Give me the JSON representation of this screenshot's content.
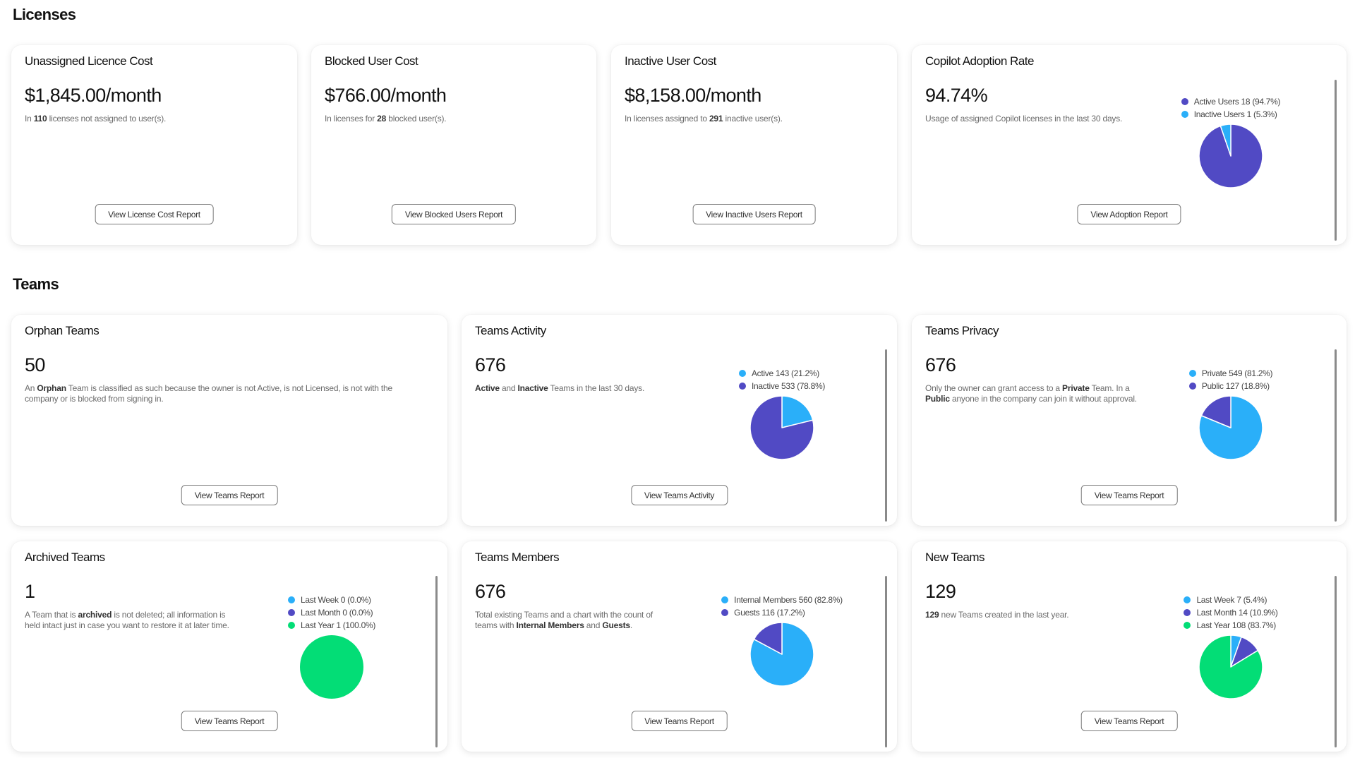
{
  "colors": {
    "blue": "#2AAFF9",
    "purple": "#514AC4",
    "green": "#03DD76"
  },
  "licenses": {
    "heading": "Licenses",
    "cards": [
      {
        "title": "Unassigned Licence Cost",
        "value": "$1,845.00/month",
        "desc": [
          {
            "t": "In "
          },
          {
            "t": "110",
            "b": true
          },
          {
            "t": " licenses not assigned to user(s)."
          }
        ],
        "button": "View License Cost Report"
      },
      {
        "title": "Blocked User Cost",
        "value": "$766.00/month",
        "desc": [
          {
            "t": "In licenses for "
          },
          {
            "t": "28",
            "b": true
          },
          {
            "t": " blocked user(s)."
          }
        ],
        "button": "View Blocked Users Report"
      },
      {
        "title": "Inactive User Cost",
        "value": "$8,158.00/month",
        "desc": [
          {
            "t": "In licenses assigned to "
          },
          {
            "t": "291",
            "b": true
          },
          {
            "t": " inactive user(s)."
          }
        ],
        "button": "View Inactive Users Report"
      },
      {
        "title": "Copilot Adoption Rate",
        "value": "94.74%",
        "desc": [
          {
            "t": "Usage of assigned Copilot licenses in the last 30 days."
          }
        ],
        "button": "View Adoption Report",
        "chart": {
          "type": "pie",
          "series": [
            {
              "legend": "Active Users 18 (94.7%)",
              "value": 18,
              "color": "purple"
            },
            {
              "legend": "Inactive Users 1 (5.3%)",
              "value": 1,
              "color": "blue"
            }
          ]
        }
      }
    ]
  },
  "teams": {
    "heading": "Teams",
    "cards": [
      {
        "title": "Orphan Teams",
        "value": "50",
        "desc": [
          {
            "t": "An "
          },
          {
            "t": "Orphan",
            "b": true
          },
          {
            "t": " Team is classified as such because the owner is not Active, is not Licensed, is not with the company or is blocked from signing in."
          }
        ],
        "button": "View Teams Report"
      },
      {
        "title": "Teams Activity",
        "value": "676",
        "desc": [
          {
            "t": "Active",
            "b": true
          },
          {
            "t": " and "
          },
          {
            "t": "Inactive",
            "b": true
          },
          {
            "t": " Teams in the last 30 days."
          }
        ],
        "button": "View Teams Activity",
        "chart": {
          "type": "pie",
          "series": [
            {
              "legend": "Active 143 (21.2%)",
              "value": 143,
              "color": "blue"
            },
            {
              "legend": "Inactive 533 (78.8%)",
              "value": 533,
              "color": "purple"
            }
          ]
        }
      },
      {
        "title": "Teams Privacy",
        "value": "676",
        "desc": [
          {
            "t": "Only the owner can grant access to a "
          },
          {
            "t": "Private",
            "b": true
          },
          {
            "t": " Team. In a "
          },
          {
            "t": "Public",
            "b": true
          },
          {
            "t": " anyone in the company can join it without approval."
          }
        ],
        "button": "View Teams Report",
        "chart": {
          "type": "pie",
          "series": [
            {
              "legend": "Private 549 (81.2%)",
              "value": 549,
              "color": "blue"
            },
            {
              "legend": "Public 127 (18.8%)",
              "value": 127,
              "color": "purple"
            }
          ]
        }
      },
      {
        "title": "Archived Teams",
        "value": "1",
        "desc": [
          {
            "t": "A Team that is "
          },
          {
            "t": "archived",
            "b": true
          },
          {
            "t": " is not deleted; all information is held intact just in case you want to restore it at later time."
          }
        ],
        "button": "View Teams Report",
        "chart": {
          "type": "pie",
          "series": [
            {
              "legend": "Last Week 0 (0.0%)",
              "value": 0,
              "color": "blue"
            },
            {
              "legend": "Last Month 0 (0.0%)",
              "value": 0,
              "color": "purple"
            },
            {
              "legend": "Last Year 1 (100.0%)",
              "value": 1,
              "color": "green"
            }
          ]
        }
      },
      {
        "title": "Teams Members",
        "value": "676",
        "desc": [
          {
            "t": "Total existing Teams and a chart with the count of teams with "
          },
          {
            "t": "Internal Members",
            "b": true
          },
          {
            "t": " and "
          },
          {
            "t": "Guests",
            "b": true
          },
          {
            "t": "."
          }
        ],
        "button": "View Teams Report",
        "chart": {
          "type": "pie",
          "series": [
            {
              "legend": "Internal Members 560 (82.8%)",
              "value": 560,
              "color": "blue"
            },
            {
              "legend": "Guests 116 (17.2%)",
              "value": 116,
              "color": "purple"
            }
          ]
        }
      },
      {
        "title": "New Teams",
        "value": "129",
        "desc": [
          {
            "t": "129",
            "b": true
          },
          {
            "t": " new Teams created in the last year."
          }
        ],
        "button": "View Teams Report",
        "chart": {
          "type": "pie",
          "series": [
            {
              "legend": "Last Week 7 (5.4%)",
              "value": 7,
              "color": "blue"
            },
            {
              "legend": "Last Month 14 (10.9%)",
              "value": 14,
              "color": "purple"
            },
            {
              "legend": "Last Year 108 (83.7%)",
              "value": 108,
              "color": "green"
            }
          ]
        }
      }
    ]
  }
}
